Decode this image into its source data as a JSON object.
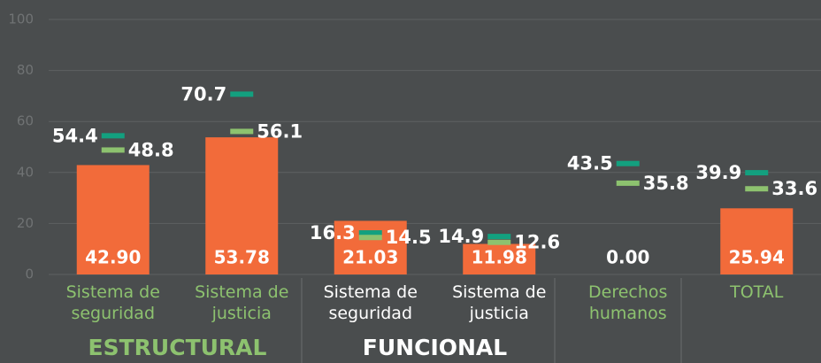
{
  "chart_data": {
    "type": "bar",
    "categories": [
      "Sistema de seguridad",
      "Sistema de justicia",
      "Sistema de seguridad",
      "Sistema de justicia",
      "Derechos humanos",
      "TOTAL"
    ],
    "category_colors": [
      "#8dc26f",
      "#8dc26f",
      "#ffffff",
      "#ffffff",
      "#8dc26f",
      "#8dc26f"
    ],
    "values": [
      42.9,
      53.78,
      21.03,
      11.98,
      0,
      25.94
    ],
    "value_labels": [
      "42.90",
      "53.78",
      "21.03",
      "11.98",
      "0.00",
      "25.94"
    ],
    "color": "#f26b3a",
    "markers": [
      {
        "color": "#13a07f",
        "values": [
          54.4,
          70.7,
          16.3,
          14.9,
          43.5,
          39.9
        ]
      },
      {
        "color": "#8dc26f",
        "values": [
          48.8,
          56.1,
          14.5,
          12.6,
          35.8,
          33.6
        ]
      }
    ],
    "groups": [
      {
        "label": "ESTRUCTURAL",
        "color": "#8dc26f"
      },
      {
        "label": "FUNCIONAL",
        "color": "#ffffff"
      }
    ],
    "ylim": [
      0,
      100
    ],
    "yticks": [
      0,
      20,
      40,
      60,
      80,
      100
    ],
    "grid": true
  }
}
